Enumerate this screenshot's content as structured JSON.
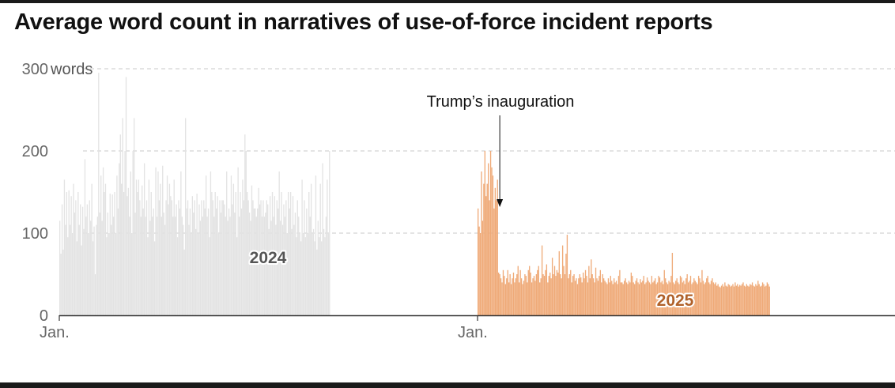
{
  "title": "Average word count in narratives of use-of-force incident reports",
  "chart_data": {
    "type": "bar",
    "title": "Average word count in narratives of use-of-force incident reports",
    "xlabel": "",
    "ylabel": "",
    "y_unit": "words",
    "ylim": [
      0,
      300
    ],
    "y_ticks": [
      0,
      100,
      200,
      300
    ],
    "y_tick_labels": [
      "0",
      "100",
      "200",
      "300"
    ],
    "grid": true,
    "x_tick_labels": [
      "Jan.",
      "Jan."
    ],
    "colors": {
      "2024": "#e3e3e3",
      "2025": "#efaa78",
      "year_2024_label": "#555555",
      "year_2025_label": "#b0612a"
    },
    "annotation": {
      "text": "Trump’s inauguration",
      "date": "2025-01-20"
    },
    "series": [
      {
        "name": "2024",
        "start_date": "2024-01-01",
        "values": [
          115,
          75,
          135,
          80,
          165,
          110,
          150,
          95,
          152,
          110,
          145,
          100,
          160,
          125,
          140,
          90,
          150,
          110,
          135,
          85,
          132,
          105,
          190,
          120,
          135,
          100,
          140,
          115,
          160,
          90,
          108,
          50,
          110,
          120,
          295,
          125,
          170,
          115,
          180,
          150,
          160,
          95,
          125,
          100,
          148,
          110,
          147,
          120,
          150,
          100,
          170,
          130,
          185,
          220,
          160,
          240,
          150,
          200,
          290,
          145,
          155,
          120,
          175,
          100,
          200,
          240,
          125,
          165,
          150,
          165,
          140,
          120,
          158,
          130,
          185,
          120,
          140,
          95,
          165,
          115,
          150,
          120,
          130,
          90,
          180,
          120,
          175,
          140,
          160,
          120,
          182,
          125,
          110,
          140,
          170,
          135,
          160,
          145,
          140,
          120,
          165,
          120,
          135,
          95,
          140,
          130,
          175,
          120,
          110,
          80,
          240,
          130,
          140,
          110,
          130,
          100,
          145,
          125,
          140,
          105,
          148,
          100,
          135,
          115,
          140,
          120,
          140,
          130,
          170,
          120,
          130,
          95,
          175,
          150,
          140,
          120,
          150,
          130,
          145,
          100,
          140,
          125,
          140,
          140,
          135,
          120,
          175,
          115,
          130,
          120,
          170,
          135,
          160,
          125,
          150,
          95,
          180,
          120,
          150,
          130,
          165,
          140,
          220,
          200,
          150,
          140,
          125,
          115,
          158,
          140,
          130,
          130,
          120,
          130,
          155,
          135,
          140,
          120,
          140,
          120,
          125,
          140,
          135,
          105,
          145,
          115,
          150,
          120,
          145,
          110,
          140,
          130,
          175,
          115,
          150,
          110,
          135,
          120,
          140,
          100,
          150,
          130,
          150,
          105,
          145,
          110,
          125,
          95,
          140,
          120,
          100,
          90,
          165,
          100,
          140,
          95,
          130,
          100,
          150,
          120,
          160,
          100,
          105,
          90,
          170,
          80,
          115,
          95,
          160,
          90,
          185,
          105,
          95,
          120,
          165,
          100,
          200
        ]
      },
      {
        "name": "2025",
        "start_date": "2025-01-01",
        "values": [
          130,
          108,
          100,
          175,
          115,
          160,
          200,
          145,
          160,
          185,
          140,
          200,
          180,
          170,
          130,
          155,
          140,
          165,
          52,
          50,
          45,
          40,
          55,
          48,
          38,
          45,
          55,
          40,
          50,
          38,
          45,
          52,
          40,
          45,
          50,
          60,
          40,
          55,
          45,
          38,
          42,
          50,
          48,
          40,
          55,
          60,
          52,
          40,
          45,
          48,
          42,
          50,
          55,
          60,
          40,
          45,
          85,
          50,
          48,
          55,
          62,
          40,
          48,
          52,
          45,
          70,
          50,
          60,
          48,
          55,
          52,
          78,
          50,
          45,
          85,
          60,
          50,
          75,
          98,
          45,
          50,
          55,
          40,
          48,
          50,
          42,
          45,
          38,
          45,
          50,
          46,
          40,
          52,
          45,
          55,
          48,
          40,
          60,
          45,
          68,
          50,
          45,
          40,
          58,
          45,
          42,
          48,
          55,
          40,
          50,
          45,
          42,
          40,
          38,
          45,
          40,
          48,
          42,
          38,
          45,
          40,
          42,
          38,
          48,
          55,
          40,
          40,
          38,
          42,
          45,
          40,
          38,
          42,
          40,
          52,
          48,
          40,
          38,
          42,
          45,
          40,
          38,
          44,
          40,
          42,
          48,
          38,
          40,
          46,
          42,
          40,
          38,
          48,
          40,
          42,
          45,
          38,
          40,
          48,
          46,
          40,
          42,
          38,
          55,
          45,
          40,
          38,
          42,
          40,
          48,
          76,
          40,
          38,
          42,
          45,
          40,
          38,
          48,
          46,
          40,
          42,
          38,
          45,
          50,
          40,
          42,
          48,
          38,
          40,
          45,
          42,
          40,
          38,
          48,
          45,
          40,
          55,
          42,
          38,
          40,
          45,
          48,
          40,
          38,
          42,
          45,
          40,
          38,
          40,
          36,
          38,
          35,
          34,
          36,
          38,
          35,
          40,
          36,
          35,
          38,
          37,
          35,
          36,
          38,
          35,
          40,
          36,
          38,
          35,
          37,
          36,
          38,
          40,
          36,
          35,
          38,
          36,
          35,
          38,
          37,
          40,
          36,
          35,
          38,
          36,
          42,
          38,
          35,
          36,
          40,
          38,
          35,
          36,
          40,
          38,
          35
        ]
      }
    ]
  }
}
